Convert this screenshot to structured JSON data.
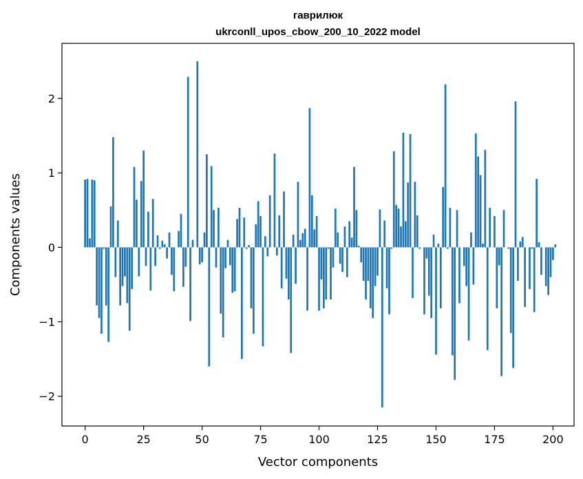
{
  "chart_data": {
    "type": "bar",
    "title": "гаврилюк",
    "subtitle": "ukrconll_upos_cbow_200_10_2022 model",
    "xlabel": "Vector components",
    "ylabel": "Components values",
    "xlim": [
      -9.9,
      209.0
    ],
    "ylim": [
      -2.4,
      2.74
    ],
    "xticks": [
      0,
      25,
      50,
      75,
      100,
      125,
      150,
      175,
      200
    ],
    "xtick_labels": [
      "0",
      "25",
      "50",
      "75",
      "100",
      "125",
      "150",
      "175",
      "200"
    ],
    "yticks": [
      -2,
      -1,
      0,
      1,
      2
    ],
    "ytick_labels": [
      "−2",
      "−1",
      "0",
      "1",
      "2"
    ],
    "bar_color": "#1f77b4",
    "grid": false,
    "legend": "none",
    "x_start": 0,
    "values": [
      0.91,
      0.92,
      0.12,
      0.91,
      0.9,
      -0.78,
      -0.95,
      -1.16,
      -0.02,
      -0.78,
      -1.27,
      0.55,
      1.48,
      -0.4,
      0.36,
      -0.78,
      -0.52,
      -0.39,
      -0.75,
      -1.12,
      -0.56,
      1.08,
      0.64,
      -0.39,
      0.89,
      1.3,
      -0.25,
      0.48,
      -0.58,
      0.65,
      -0.25,
      0.16,
      -0.02,
      0.09,
      0.04,
      -0.15,
      0.2,
      -0.37,
      -0.59,
      0.0,
      0.22,
      0.45,
      -0.53,
      -0.26,
      2.29,
      -0.99,
      0.1,
      0.0,
      2.5,
      -0.23,
      -0.2,
      0.2,
      1.25,
      -1.6,
      1.09,
      0.5,
      -0.27,
      0.53,
      -0.89,
      -1.21,
      -0.28,
      0.1,
      -0.24,
      -0.61,
      -0.59,
      0.38,
      0.53,
      -1.5,
      0.4,
      -0.02,
      0.03,
      -0.82,
      -1.16,
      0.31,
      0.62,
      0.42,
      -1.33,
      0.15,
      -0.12,
      0.7,
      0.0,
      1.26,
      -0.11,
      0.43,
      -0.55,
      0.75,
      -0.42,
      -0.7,
      -1.42,
      0.17,
      -0.49,
      0.88,
      0.1,
      0.19,
      0.25,
      -0.85,
      1.87,
      0.7,
      0.24,
      0.42,
      -0.85,
      -0.43,
      -0.82,
      -0.7,
      -0.02,
      -0.7,
      -0.27,
      0.52,
      0.2,
      -0.22,
      -0.33,
      0.28,
      -0.4,
      0.35,
      0.13,
      1.08,
      0.5,
      0.02,
      -0.2,
      -0.45,
      -0.7,
      -0.45,
      -0.82,
      -0.95,
      -0.52,
      -0.38,
      0.51,
      -2.15,
      0.36,
      -0.55,
      -0.9,
      -0.02,
      1.29,
      0.57,
      0.52,
      0.28,
      1.54,
      0.35,
      0.87,
      1.52,
      -0.68,
      0.88,
      0.43,
      -0.02,
      0.0,
      -0.9,
      -0.15,
      -0.65,
      -0.95,
      0.17,
      -1.44,
      0.05,
      -0.82,
      0.81,
      2.19,
      -0.02,
      0.53,
      -1.45,
      -1.78,
      0.5,
      -0.75,
      0.0,
      -0.25,
      -0.52,
      -1.25,
      0.2,
      -0.5,
      1.53,
      1.22,
      0.97,
      0.05,
      1.31,
      -1.38,
      0.53,
      0.0,
      0.42,
      -0.82,
      -0.24,
      -1.73,
      0.5,
      0.0,
      -0.02,
      -1.15,
      -1.62,
      1.96,
      -0.45,
      0.08,
      0.14,
      -0.8,
      0.0,
      -0.56,
      -0.02,
      -0.87,
      0.92,
      0.07,
      -0.37,
      0.0,
      -0.52,
      -0.64,
      -0.4,
      -0.17,
      0.04
    ]
  }
}
